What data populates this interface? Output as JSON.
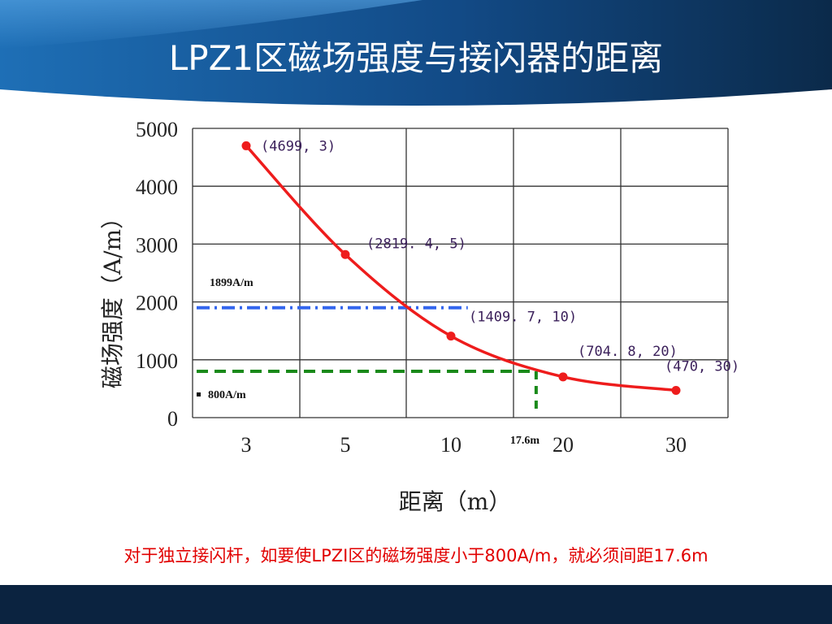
{
  "slide": {
    "title": "LPZ1区磁场强度与接闪器的距离",
    "caption": "对于独立接闪杆，如要使LPZI区的磁场强度小于800A/m，就必须间距17.6m",
    "colors": {
      "header_dark": "#0b2a4a",
      "header_light": "#1e6fb6",
      "footer": "#0b2340",
      "caption": "#e10000"
    }
  },
  "chart_data": {
    "type": "line",
    "xlabel": "距离（m）",
    "ylabel": "磁场强度（A/m）",
    "ylim": [
      0,
      5000
    ],
    "y_ticks": [
      "0",
      "1000",
      "2000",
      "3000",
      "4000",
      "5000"
    ],
    "x_ticks": [
      "3",
      "5",
      "10",
      "20",
      "30"
    ],
    "grid": true,
    "series": [
      {
        "color": "#ee1c1c",
        "points": [
          {
            "x": 3,
            "y": 4699,
            "label": "(4699, 3)"
          },
          {
            "x": 5,
            "y": 2819.4,
            "label": "(2819. 4, 5)"
          },
          {
            "x": 10,
            "y": 1409.7,
            "label": "(1409. 7, 10)"
          },
          {
            "x": 20,
            "y": 704.8,
            "label": "(704. 8, 20)"
          },
          {
            "x": 30,
            "y": 470,
            "label": "(470, 30)"
          }
        ]
      }
    ],
    "reference_lines": [
      {
        "label": "1899A/m",
        "y": 1899,
        "x_end": 11.5,
        "color": "#3366ee",
        "style": "dash-dot"
      },
      {
        "label": "800A/m",
        "y": 800,
        "x_end": 17.6,
        "color": "#1a8a1a",
        "style": "dashed",
        "drop_to_axis": true,
        "x_label": "17.6m"
      }
    ]
  }
}
